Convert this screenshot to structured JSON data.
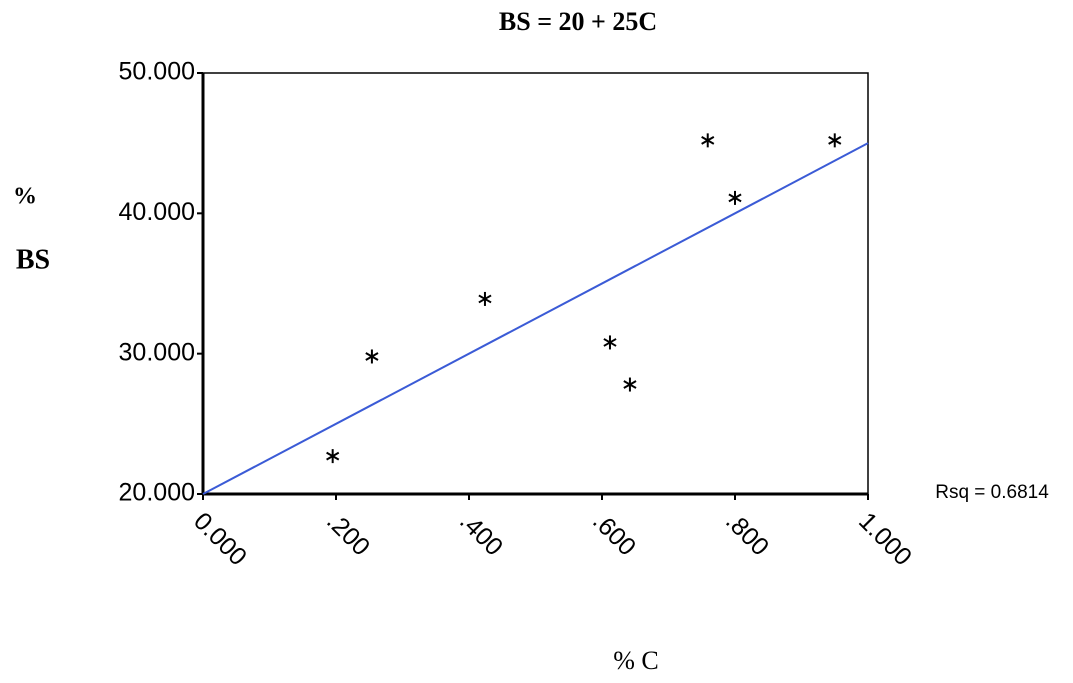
{
  "chart_data": {
    "type": "scatter",
    "title": "BS = 20 + 25C",
    "x_label": "% C",
    "y_label_lines": [
      "%",
      "BS"
    ],
    "annotation": "Rsq = 0.6814",
    "series": [
      {
        "kind": "scatter",
        "color": "#000000",
        "x": [
          0.195,
          0.254,
          0.424,
          0.612,
          0.642,
          0.759,
          0.8,
          0.95
        ],
        "values": [
          22.7,
          29.8,
          33.9,
          30.8,
          27.8,
          45.2,
          41.1,
          45.2
        ]
      },
      {
        "kind": "line",
        "color": "#3b5bd6",
        "x": [
          0,
          1
        ],
        "values": [
          20,
          45
        ]
      }
    ],
    "xlim": [
      0,
      1
    ],
    "xticks": [
      {
        "value": 0,
        "label": "0.000"
      },
      {
        "value": 0.2,
        "label": ".200"
      },
      {
        "value": 0.4,
        "label": ".400"
      },
      {
        "value": 0.6,
        "label": ".600"
      },
      {
        "value": 0.8,
        "label": ".800"
      },
      {
        "value": 1,
        "label": "1.000"
      }
    ],
    "ylim": [
      20,
      50
    ],
    "yticks": [
      {
        "value": 20,
        "label": "20.000"
      },
      {
        "value": 30,
        "label": "30.000"
      },
      {
        "value": 40,
        "label": "40.000"
      },
      {
        "value": 50,
        "label": "50.000"
      }
    ],
    "grid": false
  }
}
